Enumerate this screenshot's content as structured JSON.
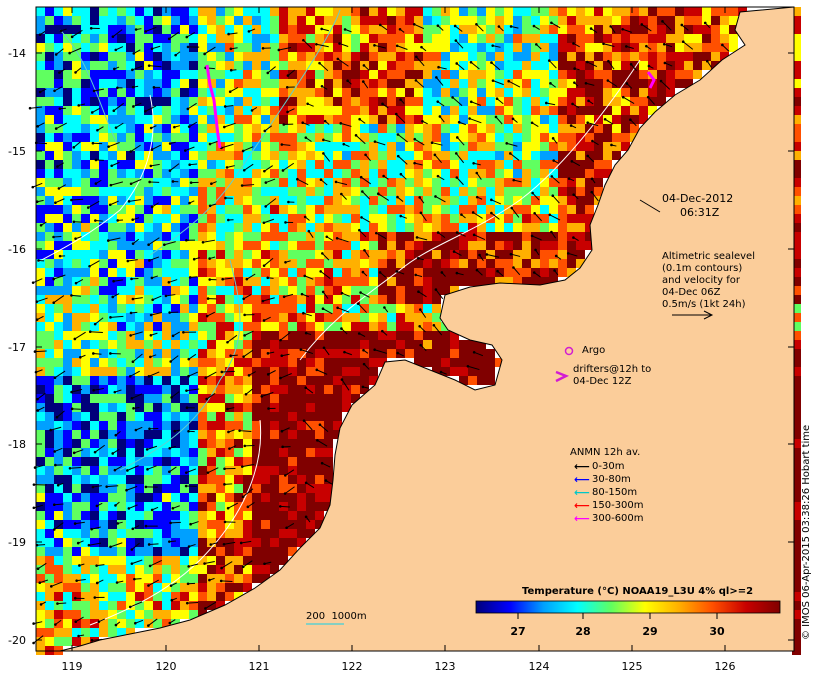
{
  "map": {
    "y_ticks": [
      "-14",
      "-15",
      "-16",
      "-17",
      "-18",
      "-19",
      "-20"
    ],
    "x_ticks": [
      "119",
      "120",
      "121",
      "122",
      "123",
      "124",
      "125",
      "126"
    ],
    "lat_range": [
      -20.1,
      -13.5
    ],
    "lon_range": [
      118.65,
      126.7
    ],
    "timestamp_date": "04-Dec-2012",
    "timestamp_time": "06:31Z",
    "altimetry_note": "Altimetric sealevel\n(0.1m contours)\nand velocity for\n04-Dec 06Z\n0.5m/s (1kt 24h)",
    "argo_label": "Argo",
    "drifter_label": "drifters@12h to\n04-Dec 12Z",
    "bathymetry_label": "200  1000m",
    "credit": "© IMOS 06-Apr-2015 03:38:26 Hobart time",
    "colors": {
      "land": "#fbcd9a",
      "sea_dark_red": "#8b0000",
      "argo": "#d21cd2",
      "contour_white": "#ffffff",
      "contour_cyan": "#5fd0d0"
    }
  },
  "legend": {
    "title": "ANMN 12h av.",
    "items": [
      {
        "label": "0-30m",
        "color": "#000000"
      },
      {
        "label": "30-80m",
        "color": "#0000ff"
      },
      {
        "label": "80-150m",
        "color": "#00c8c8"
      },
      {
        "label": "150-300m",
        "color": "#ff0000"
      },
      {
        "label": "300-600m",
        "color": "#ff00ff"
      }
    ]
  },
  "colorbar": {
    "title": "Temperature (°C) NOAA19_L3U 4% ql>=2",
    "ticks": [
      "27",
      "28",
      "29",
      "30"
    ],
    "stops": [
      "#00007a",
      "#0000ff",
      "#00a0ff",
      "#00ffff",
      "#60ff60",
      "#ffff00",
      "#ffb000",
      "#ff5000",
      "#c80000",
      "#800000"
    ]
  }
}
